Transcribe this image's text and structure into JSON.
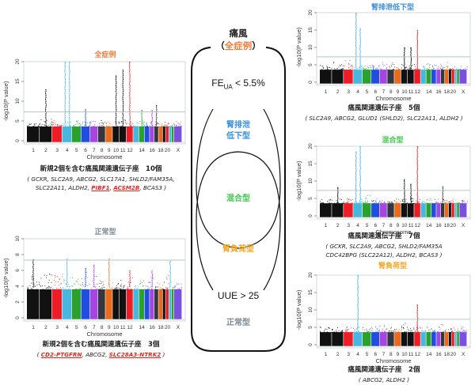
{
  "colors": {
    "all": "#f07a3c",
    "low_excretion": "#3a8ee0",
    "mixed": "#3cc94a",
    "overload": "#f5a623",
    "normal": "#7d8a94",
    "new_gene": "#e8261f",
    "threshold_line": "#b9c4c8",
    "chromosome_palette": [
      "#111111",
      "#111111",
      "#ee1c25",
      "#48b6dd",
      "#2ca02c",
      "#1f4fe0",
      "#a546e0",
      "#32383d",
      "#e86a1a",
      "#111111",
      "#111111",
      "#ee1c25",
      "#48b6dd",
      "#2ca02c",
      "#1f4fe0",
      "#a546e0",
      "#32383d",
      "#e86a1a",
      "#111111",
      "#ee1c25",
      "#48b6dd",
      "#2ca02c",
      "#7b4fe0",
      "#32383d"
    ]
  },
  "diagram": {
    "title": "痛風",
    "subtitle_open": "（",
    "subtitle": "全症例",
    "subtitle_close": "）",
    "condition_top_prefix": "FE",
    "condition_top_sub": "UA",
    "condition_top_suffix": " < 5.5%",
    "groups": {
      "low_excretion_line1": "腎排泄",
      "low_excretion_line2": "低下型",
      "mixed": "混合型",
      "overload": "腎負荷型",
      "normal": "正常型"
    },
    "condition_bottom": "UUE > 25"
  },
  "chart_data": [
    {
      "id": "all",
      "type": "scatter",
      "subtype": "manhattan",
      "title": "全症例",
      "xlabel": "Chromosome",
      "ylabel": "-log10(P value)",
      "ylim": [
        0,
        20
      ],
      "yticks": [
        0,
        5,
        10,
        15,
        20
      ],
      "genome_wide_threshold": 7.3,
      "xtick_labels": [
        "1",
        "2",
        "3",
        "4",
        "5",
        "6",
        "7",
        "8",
        "9",
        "10",
        "11",
        "12",
        "14",
        "16",
        "18",
        "20",
        "X"
      ],
      "chromosomes": [
        "1",
        "2",
        "3",
        "4",
        "5",
        "6",
        "7",
        "8",
        "9",
        "10",
        "11",
        "12",
        "13",
        "14",
        "15",
        "16",
        "17",
        "18",
        "19",
        "20",
        "21",
        "22",
        "X"
      ],
      "baseline_peak": [
        4.8,
        5.5,
        5.3,
        5.0,
        5.1,
        5.2,
        5.2,
        5.3,
        5.0,
        5.8,
        5.4,
        5.5,
        5.0,
        5.2,
        5.0,
        5.3,
        5.2,
        5.0,
        4.8,
        5.0,
        4.6,
        4.8,
        5.0
      ],
      "peaks": [
        {
          "chromosome": "2",
          "value": 13
        },
        {
          "chromosome": "4",
          "value": 20,
          "position": 0.3
        },
        {
          "chromosome": "4",
          "value": 20,
          "position": 0.75
        },
        {
          "chromosome": "6",
          "value": 8
        },
        {
          "chromosome": "10",
          "value": 16.5
        },
        {
          "chromosome": "11",
          "value": 18
        },
        {
          "chromosome": "12",
          "value": 20
        },
        {
          "chromosome": "14",
          "value": 7.8
        },
        {
          "chromosome": "16",
          "value": 7.8
        },
        {
          "chromosome": "17",
          "value": 9
        }
      ],
      "caption": "新規2個を含む痛風関連遺伝子座　10個",
      "genes_open": "( ",
      "genes": [
        {
          "name": "GCKR",
          "new": false
        },
        {
          "name": "SLC2A9",
          "new": false
        },
        {
          "name": "ABCG2",
          "new": false
        },
        {
          "name": "SLC17A1",
          "new": false
        },
        {
          "name": "SHLD2/FAM35A",
          "new": false,
          "break_after": true
        },
        {
          "name": "SLC22A11",
          "new": false
        },
        {
          "name": "ALDH2",
          "new": false
        },
        {
          "name": "PIBF1",
          "new": true
        },
        {
          "name": "ACSM2B",
          "new": true
        },
        {
          "name": "BCAS3",
          "new": false
        }
      ],
      "genes_close": " )"
    },
    {
      "id": "normal",
      "type": "scatter",
      "subtype": "manhattan",
      "title": "正常型",
      "xlabel": "Chromosome",
      "ylabel": "-log10(P value)",
      "ylim": [
        0,
        10
      ],
      "yticks": [
        0,
        2,
        4,
        6,
        8,
        10
      ],
      "genome_wide_threshold": 7.3,
      "xtick_labels": [
        "1",
        "2",
        "3",
        "4",
        "5",
        "6",
        "7",
        "8",
        "9",
        "10",
        "11",
        "12",
        "14",
        "16",
        "18",
        "20",
        "X"
      ],
      "chromosomes": [
        "1",
        "2",
        "3",
        "4",
        "5",
        "6",
        "7",
        "8",
        "9",
        "10",
        "11",
        "12",
        "13",
        "14",
        "15",
        "16",
        "17",
        "18",
        "19",
        "20",
        "21",
        "22",
        "X"
      ],
      "baseline_peak": [
        5.5,
        5.6,
        5.5,
        5.8,
        5.2,
        5.8,
        5.3,
        4.8,
        4.5,
        5.0,
        4.8,
        5.2,
        4.2,
        4.8,
        4.7,
        5.3,
        5.0,
        4.5,
        4.6,
        5.5,
        5.2,
        4.5,
        4.6
      ],
      "peaks": [
        {
          "chromosome": "1",
          "value": 7.4
        },
        {
          "chromosome": "4",
          "value": 7.5
        },
        {
          "chromosome": "6",
          "value": 6.3
        },
        {
          "chromosome": "7",
          "value": 6.7
        },
        {
          "chromosome": "9",
          "value": 7.5
        },
        {
          "chromosome": "12",
          "value": 6.0
        },
        {
          "chromosome": "16",
          "value": 6.0
        },
        {
          "chromosome": "21",
          "value": 7.2
        }
      ],
      "caption": "新規2個を含む痛風関連遺伝子座　3個",
      "genes_open": "( ",
      "genes": [
        {
          "name": "CD2-PTGFRN",
          "new": true
        },
        {
          "name": "ABCG2",
          "new": false
        },
        {
          "name": "SLC28A3-NTRK2",
          "new": true
        }
      ],
      "genes_close": " )"
    },
    {
      "id": "low_excretion",
      "type": "scatter",
      "subtype": "manhattan",
      "title": "腎排泄低下型",
      "xlabel": "Chromosome",
      "ylabel": "-log10(P value)",
      "ylim": [
        0,
        20
      ],
      "yticks": [
        0,
        5,
        10,
        15,
        20
      ],
      "genome_wide_threshold": 7.3,
      "xtick_labels": [
        "1",
        "2",
        "3",
        "4",
        "5",
        "6",
        "7",
        "8",
        "9",
        "10",
        "11",
        "12",
        "14",
        "16",
        "18",
        "20",
        "X"
      ],
      "chromosomes": [
        "1",
        "2",
        "3",
        "4",
        "5",
        "6",
        "7",
        "8",
        "9",
        "10",
        "11",
        "12",
        "13",
        "14",
        "15",
        "16",
        "17",
        "18",
        "19",
        "20",
        "21",
        "22",
        "X"
      ],
      "baseline_peak": [
        5.0,
        6.2,
        6.8,
        5.0,
        4.9,
        5.2,
        6.5,
        6.0,
        4.5,
        5.6,
        5.5,
        5.0,
        4.8,
        5.7,
        5.0,
        5.6,
        5.0,
        5.8,
        4.7,
        5.0,
        4.8,
        4.6,
        4.8
      ],
      "peaks": [
        {
          "chromosome": "4",
          "value": 20,
          "position": 0.3
        },
        {
          "chromosome": "4",
          "value": 15.5,
          "position": 0.75
        },
        {
          "chromosome": "10",
          "value": 10
        },
        {
          "chromosome": "11",
          "value": 10
        },
        {
          "chromosome": "12",
          "value": 15
        }
      ],
      "caption": "痛風関連遺伝子座　5個",
      "genes_open": "( ",
      "genes": [
        {
          "name": "SLC2A9",
          "new": false
        },
        {
          "name": "ABCG2",
          "new": false
        },
        {
          "name": "GLUD1 (SHLD2)",
          "new": false
        },
        {
          "name": "SLC22A11",
          "new": false
        },
        {
          "name": "ALDH2",
          "new": false
        }
      ],
      "genes_close": " )"
    },
    {
      "id": "mixed",
      "type": "scatter",
      "subtype": "manhattan",
      "title": "混合型",
      "xlabel": "Chromosome",
      "ylabel": "-log10(P value)",
      "ylim": [
        0,
        20
      ],
      "yticks": [
        0,
        5,
        10,
        15,
        20
      ],
      "genome_wide_threshold": 7.3,
      "xtick_labels": [
        "1",
        "2",
        "3",
        "4",
        "5",
        "6",
        "7",
        "8",
        "9",
        "10",
        "11",
        "12",
        "14",
        "16",
        "18",
        "20",
        "X"
      ],
      "chromosomes": [
        "1",
        "2",
        "3",
        "4",
        "5",
        "6",
        "7",
        "8",
        "9",
        "10",
        "11",
        "12",
        "13",
        "14",
        "15",
        "16",
        "17",
        "18",
        "19",
        "20",
        "21",
        "22",
        "X"
      ],
      "baseline_peak": [
        4.8,
        5.0,
        5.0,
        5.2,
        6.0,
        5.0,
        4.8,
        4.6,
        5.5,
        5.0,
        5.5,
        5.0,
        4.8,
        5.0,
        4.8,
        5.0,
        4.9,
        4.8,
        4.6,
        4.9,
        4.7,
        4.5,
        4.6
      ],
      "peaks": [
        {
          "chromosome": "2",
          "value": 8.2
        },
        {
          "chromosome": "4",
          "value": 18.5,
          "position": 0.3
        },
        {
          "chromosome": "4",
          "value": 20,
          "position": 0.75
        },
        {
          "chromosome": "10",
          "value": 10.5
        },
        {
          "chromosome": "11",
          "value": 9.2
        },
        {
          "chromosome": "12",
          "value": 20
        },
        {
          "chromosome": "17",
          "value": 8.5
        }
      ],
      "caption": "痛風関連遺伝子座　7個",
      "genes_open": "( ",
      "genes": [
        {
          "name": "GCKR",
          "new": false
        },
        {
          "name": "SLC2A9",
          "new": false
        },
        {
          "name": "ABCG2",
          "new": false
        },
        {
          "name": "SHLD2/FAM35A",
          "new": false,
          "break_after": true,
          "no_comma": true
        },
        {
          "name": "CDC42BPG (SLC22A12)",
          "new": false
        },
        {
          "name": "ALDH2",
          "new": false
        },
        {
          "name": "BCAS3",
          "new": false
        }
      ],
      "genes_close": " )"
    },
    {
      "id": "overload",
      "type": "scatter",
      "subtype": "manhattan",
      "title": "腎負荷型",
      "xlabel": "Chromosome",
      "ylabel": "-log10(P value)",
      "ylim": [
        0,
        20
      ],
      "yticks": [
        0,
        5,
        10,
        15,
        20
      ],
      "genome_wide_threshold": 7.3,
      "xtick_labels": [
        "1",
        "2",
        "3",
        "4",
        "5",
        "6",
        "7",
        "8",
        "9",
        "10",
        "11",
        "12",
        "14",
        "16",
        "18",
        "20",
        "X"
      ],
      "chromosomes": [
        "1",
        "2",
        "3",
        "4",
        "5",
        "6",
        "7",
        "8",
        "9",
        "10",
        "11",
        "12",
        "13",
        "14",
        "15",
        "16",
        "17",
        "18",
        "19",
        "20",
        "21",
        "22",
        "X"
      ],
      "baseline_peak": [
        5.2,
        5.0,
        5.3,
        5.5,
        5.4,
        5.6,
        6.0,
        5.3,
        4.8,
        6.5,
        5.0,
        5.5,
        5.0,
        5.3,
        5.2,
        5.8,
        6.0,
        5.2,
        4.8,
        5.0,
        5.0,
        4.8,
        5.5
      ],
      "peaks": [
        {
          "chromosome": "4",
          "value": 20
        },
        {
          "chromosome": "12",
          "value": 11.5
        }
      ],
      "caption": "痛風関連遺伝子座　2個",
      "genes_open": "( ",
      "genes": [
        {
          "name": "ABCG2",
          "new": false
        },
        {
          "name": "ALDH2",
          "new": false
        }
      ],
      "genes_close": " )"
    }
  ]
}
